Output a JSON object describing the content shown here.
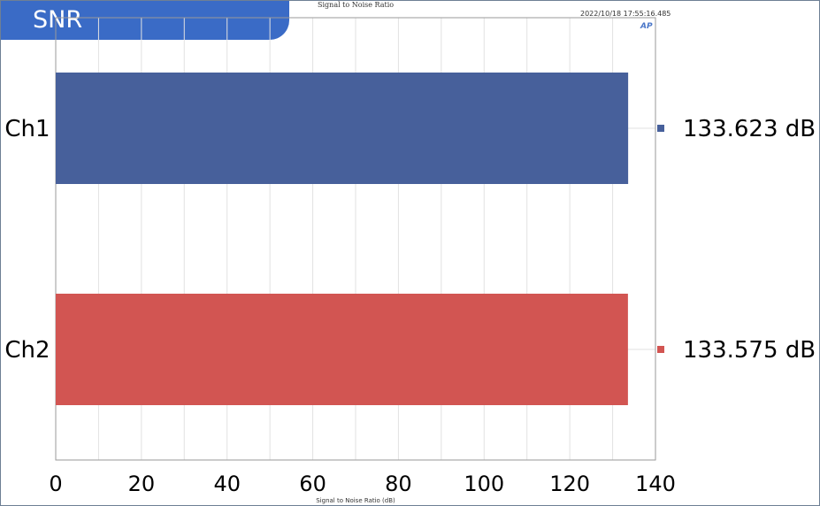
{
  "badge": {
    "label": "SNR"
  },
  "header": {
    "chart_title": "Signal to Noise Ratio",
    "timestamp": "2022/10/18 17:55:16.485",
    "logo_text": "AP"
  },
  "chart_data": {
    "type": "bar",
    "orientation": "horizontal",
    "categories": [
      "Ch1",
      "Ch2"
    ],
    "values": [
      133.623,
      133.575
    ],
    "value_labels": [
      "133.623 dB",
      "133.575 dB"
    ],
    "colors": [
      "#47609b",
      "#d25552"
    ],
    "title": "Signal to Noise Ratio",
    "xlabel": "Signal to Noise Ratio (dB)",
    "ylabel": "",
    "xlim": [
      0,
      140
    ],
    "xticks": [
      0,
      20,
      40,
      60,
      80,
      100,
      120,
      140
    ],
    "grid": true,
    "legend": "right"
  }
}
